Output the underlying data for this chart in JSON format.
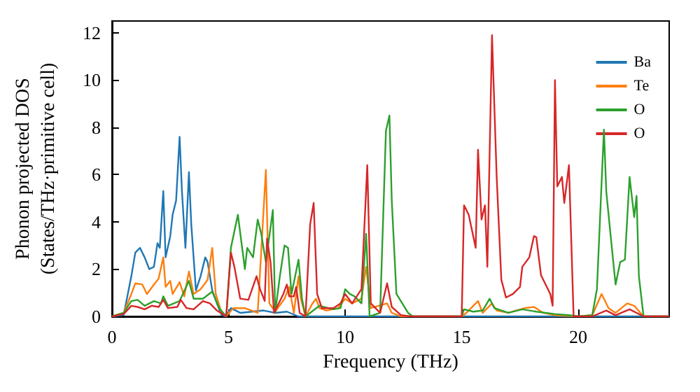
{
  "chart_data": {
    "type": "line",
    "xlabel": "Frequency (THz)",
    "ylabel": "Phonon projected DOS\n(States/THz·primitive cell)",
    "xlim": [
      0,
      23.9
    ],
    "ylim": [
      0,
      12.5
    ],
    "xticks": [
      0,
      5,
      10,
      15,
      20
    ],
    "yticks": [
      0,
      2,
      4,
      6,
      8,
      10,
      12
    ],
    "grid": false,
    "legend": "top right",
    "marker": "none",
    "line_style": "solid",
    "series": [
      {
        "name": "Ba",
        "color": "#1f77b4",
        "x": [
          0,
          0.5,
          0.83,
          1.0,
          1.2,
          1.4,
          1.6,
          1.8,
          1.95,
          2.05,
          2.2,
          2.3,
          2.5,
          2.6,
          2.75,
          2.9,
          3.0,
          3.15,
          3.3,
          3.4,
          3.6,
          3.8,
          4.0,
          4.1,
          4.3,
          4.5,
          4.7,
          4.9,
          5.1,
          5.5,
          6.0,
          6.5,
          7.0,
          7.5,
          8.0,
          12,
          16,
          20,
          23.9
        ],
        "values": [
          0,
          0.06,
          1.7,
          2.7,
          2.9,
          2.5,
          2.0,
          2.1,
          3.1,
          2.9,
          5.3,
          2.5,
          3.4,
          4.3,
          4.9,
          7.6,
          5.3,
          2.9,
          6.1,
          3.9,
          1.1,
          1.7,
          2.5,
          2.3,
          1.1,
          0.55,
          0.06,
          0,
          0.35,
          0.15,
          0.2,
          0.25,
          0.15,
          0.2,
          0,
          0,
          0,
          0,
          0
        ]
      },
      {
        "name": "Te",
        "color": "#ff7f0e",
        "x": [
          0,
          0.5,
          0.83,
          1.0,
          1.3,
          1.5,
          1.8,
          2.0,
          2.2,
          2.3,
          2.5,
          2.6,
          2.9,
          3.1,
          3.3,
          3.5,
          3.8,
          4.1,
          4.3,
          4.45,
          4.7,
          4.9,
          5.2,
          5.7,
          6.25,
          6.6,
          6.75,
          7.0,
          7.4,
          7.6,
          7.8,
          8.0,
          8.1,
          8.3,
          8.6,
          8.75,
          8.9,
          9.2,
          9.7,
          10.0,
          10.3,
          10.7,
          10.9,
          11.1,
          11.8,
          12.0,
          12.4,
          15.0,
          15.2,
          15.7,
          15.9,
          16.3,
          16.5,
          17.0,
          17.7,
          18.1,
          18.5,
          19.0,
          20.0,
          20.6,
          21.0,
          21.3,
          21.6,
          22.1,
          22.4,
          22.8,
          23.9
        ],
        "values": [
          0,
          0.15,
          0.95,
          1.4,
          1.35,
          0.95,
          1.35,
          1.6,
          2.5,
          1.25,
          1.5,
          0.95,
          1.45,
          0.85,
          1.9,
          0.95,
          1.15,
          1.55,
          2.9,
          0.95,
          0.15,
          0,
          0.35,
          0.35,
          0.15,
          6.2,
          0.55,
          0.2,
          0.75,
          1.25,
          0.15,
          1.7,
          0.75,
          0,
          0.55,
          0.75,
          0.35,
          0.25,
          0.35,
          0.75,
          0.55,
          0.75,
          2.1,
          0.35,
          0.55,
          0.15,
          0,
          0,
          0.15,
          0.65,
          0.15,
          0.55,
          0.25,
          0.15,
          0.35,
          0.4,
          0.15,
          0.05,
          0,
          0.05,
          0.95,
          0.35,
          0.15,
          0.55,
          0.45,
          0,
          0
        ]
      },
      {
        "name": "O",
        "color": "#2ca02c",
        "x": [
          0,
          0.5,
          0.83,
          1.1,
          1.4,
          1.8,
          2.1,
          2.2,
          2.4,
          2.9,
          3.3,
          3.5,
          3.9,
          4.3,
          4.6,
          4.9,
          5.1,
          5.4,
          5.7,
          5.8,
          6.05,
          6.25,
          6.4,
          6.6,
          6.9,
          7.0,
          7.2,
          7.4,
          7.55,
          7.7,
          8.0,
          8.15,
          8.3,
          8.9,
          9.5,
          9.8,
          10.0,
          10.2,
          10.4,
          10.7,
          10.9,
          11.05,
          11.5,
          11.75,
          11.9,
          12.0,
          12.2,
          12.7,
          12.9,
          15.0,
          15.1,
          15.5,
          15.9,
          16.2,
          16.4,
          17.0,
          17.6,
          18.2,
          19.0,
          19.6,
          20.0,
          20.6,
          20.8,
          21.1,
          21.2,
          21.4,
          21.6,
          21.8,
          22.0,
          22.2,
          22.4,
          22.5,
          22.6,
          22.8,
          23.9
        ],
        "values": [
          0,
          0.15,
          0.65,
          0.7,
          0.45,
          0.65,
          0.55,
          0.85,
          0.45,
          0.65,
          1.5,
          0.75,
          0.75,
          1.05,
          0.35,
          0,
          2.9,
          4.3,
          2.0,
          2.9,
          2.5,
          4.1,
          3.5,
          2.3,
          4.5,
          0.15,
          1.7,
          3.0,
          2.9,
          0.95,
          2.4,
          0.75,
          0,
          0.45,
          0.3,
          0.35,
          1.15,
          0.95,
          0.85,
          0.55,
          3.5,
          0,
          0.15,
          7.85,
          8.5,
          4.9,
          0.95,
          0.15,
          0,
          0,
          0.3,
          0.2,
          0.25,
          0.75,
          0.35,
          0.15,
          0.3,
          0.2,
          0.1,
          0.05,
          0,
          0.05,
          1.15,
          7.9,
          5.3,
          3.3,
          1.35,
          2.3,
          2.4,
          5.9,
          4.2,
          5.1,
          1.7,
          0,
          0
        ]
      },
      {
        "name": "O",
        "color": "#d62728",
        "x": [
          0,
          0.5,
          0.83,
          1.1,
          1.4,
          1.7,
          2.0,
          2.2,
          2.4,
          2.8,
          2.95,
          3.2,
          3.5,
          3.9,
          4.2,
          4.5,
          4.9,
          5.1,
          5.25,
          5.5,
          5.85,
          6.2,
          6.35,
          6.55,
          6.65,
          6.8,
          6.95,
          7.35,
          7.5,
          7.6,
          7.8,
          7.9,
          8.05,
          8.3,
          8.5,
          8.65,
          8.8,
          9.0,
          9.5,
          9.8,
          10.0,
          10.3,
          10.7,
          10.95,
          11.1,
          11.5,
          11.8,
          12.0,
          12.4,
          12.8,
          15.0,
          15.1,
          15.3,
          15.6,
          15.7,
          15.85,
          16.0,
          16.1,
          16.3,
          16.5,
          16.7,
          16.9,
          17.2,
          17.5,
          17.6,
          17.9,
          18.1,
          18.2,
          18.4,
          18.8,
          18.9,
          19.0,
          19.1,
          19.3,
          19.4,
          19.6,
          19.8,
          20.6,
          21.2,
          21.6,
          22.2,
          22.8,
          23.9
        ],
        "values": [
          0,
          0.1,
          0.45,
          0.4,
          0.3,
          0.45,
          0.4,
          0.7,
          0.35,
          0.4,
          0.7,
          0.35,
          0.3,
          0.65,
          0.55,
          0.25,
          0,
          2.7,
          2.1,
          0.75,
          0.7,
          1.7,
          1.15,
          0.65,
          3.3,
          2.3,
          0.15,
          0.95,
          1.35,
          0.85,
          0.85,
          1.25,
          0.15,
          0,
          3.9,
          4.8,
          0.95,
          0.35,
          0.35,
          0.55,
          0.95,
          0.55,
          1.15,
          6.4,
          0.55,
          0.15,
          1.4,
          0.4,
          0.05,
          0,
          0,
          4.7,
          4.3,
          2.9,
          7.05,
          4.1,
          4.7,
          2.1,
          11.9,
          5.9,
          1.55,
          0.8,
          0.95,
          1.25,
          2.1,
          2.5,
          3.4,
          3.35,
          1.75,
          0.95,
          0.45,
          10.0,
          5.5,
          5.9,
          4.8,
          6.4,
          0,
          0,
          0.25,
          0.05,
          0.3,
          0,
          0
        ]
      }
    ]
  }
}
